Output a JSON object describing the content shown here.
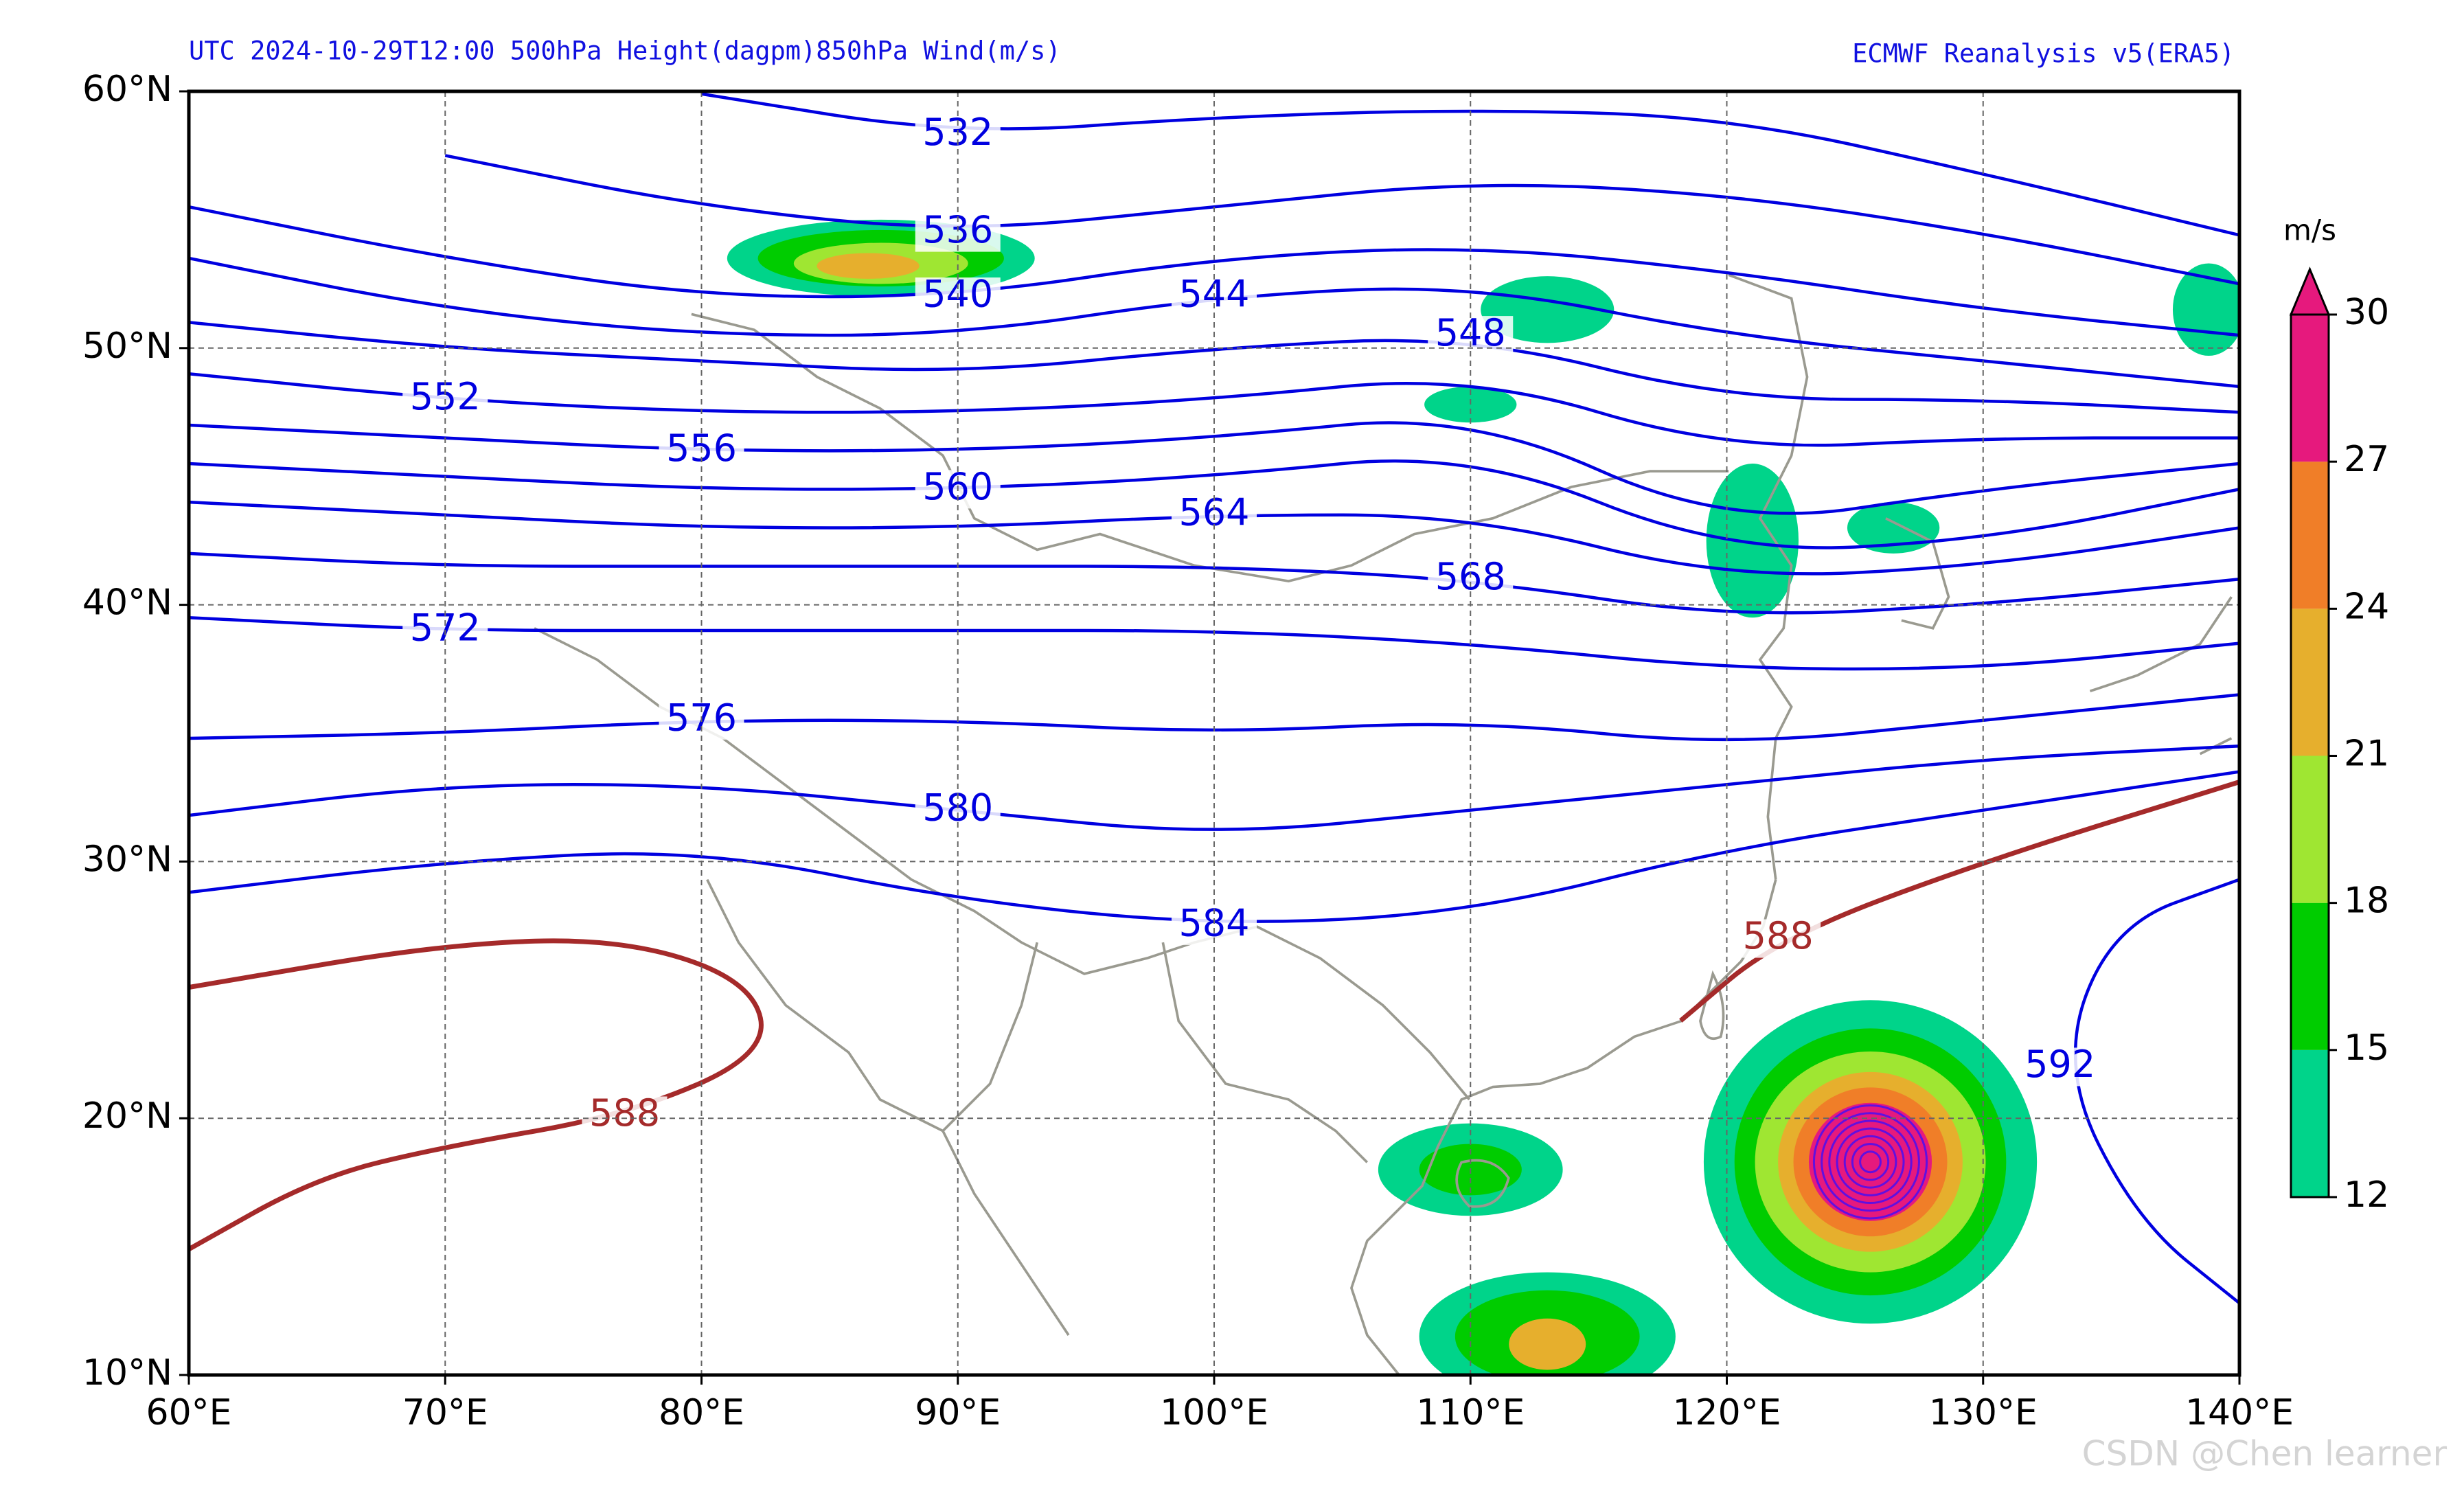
{
  "header": {
    "left": "UTC 2024-10-29T12:00 500hPa Height(dagpm)850hPa Wind(m/s)",
    "right": "ECMWF Reanalysis v5(ERA5)"
  },
  "chart_data": {
    "type": "map",
    "xlim": [
      60,
      140
    ],
    "ylim": [
      10,
      60
    ],
    "xticks": [
      {
        "value": 60,
        "label": "60°E"
      },
      {
        "value": 70,
        "label": "70°E"
      },
      {
        "value": 80,
        "label": "80°E"
      },
      {
        "value": 90,
        "label": "90°E"
      },
      {
        "value": 100,
        "label": "100°E"
      },
      {
        "value": 110,
        "label": "110°E"
      },
      {
        "value": 120,
        "label": "120°E"
      },
      {
        "value": 130,
        "label": "130°E"
      },
      {
        "value": 140,
        "label": "140°E"
      }
    ],
    "yticks": [
      {
        "value": 10,
        "label": "10°N"
      },
      {
        "value": 20,
        "label": "20°N"
      },
      {
        "value": 30,
        "label": "30°N"
      },
      {
        "value": 40,
        "label": "40°N"
      },
      {
        "value": 50,
        "label": "50°N"
      },
      {
        "value": 60,
        "label": "60°N"
      }
    ],
    "grid": true,
    "contours": [
      {
        "level": 532,
        "color": "#0000e0",
        "points": [
          [
            80,
            59.9
          ],
          [
            90,
            58.3
          ],
          [
            100,
            59
          ],
          [
            110,
            59.3
          ],
          [
            120,
            59
          ],
          [
            130,
            56.8
          ],
          [
            140,
            54.4
          ]
        ]
      },
      {
        "level": 536,
        "color": "#0000e0",
        "points": [
          [
            70,
            57.5
          ],
          [
            80,
            55.5
          ],
          [
            90,
            54.5
          ],
          [
            100,
            55.5
          ],
          [
            110,
            56.5
          ],
          [
            120,
            56
          ],
          [
            130,
            54.5
          ],
          [
            140,
            52.5
          ]
        ]
      },
      {
        "level": 540,
        "color": "#0000e0",
        "points": [
          [
            60,
            55.5
          ],
          [
            70,
            53.5
          ],
          [
            80,
            52
          ],
          [
            90,
            52
          ],
          [
            100,
            53.5
          ],
          [
            110,
            54
          ],
          [
            120,
            53
          ],
          [
            130,
            51.5
          ],
          [
            140,
            50.5
          ]
        ]
      },
      {
        "level": 544,
        "color": "#0000e0",
        "points": [
          [
            60,
            53.5
          ],
          [
            70,
            51.5
          ],
          [
            80,
            50.5
          ],
          [
            90,
            50.5
          ],
          [
            100,
            52
          ],
          [
            110,
            52.5
          ],
          [
            120,
            50.5
          ],
          [
            130,
            49.5
          ],
          [
            140,
            48.5
          ]
        ]
      },
      {
        "level": 548,
        "color": "#0000e0",
        "points": [
          [
            60,
            51
          ],
          [
            70,
            50
          ],
          [
            80,
            49.5
          ],
          [
            90,
            49
          ],
          [
            100,
            50
          ],
          [
            110,
            50.5
          ],
          [
            120,
            48
          ],
          [
            130,
            48
          ],
          [
            140,
            47.5
          ]
        ]
      },
      {
        "level": 552,
        "color": "#0000e0",
        "points": [
          [
            60,
            49
          ],
          [
            70,
            48
          ],
          [
            80,
            47.5
          ],
          [
            90,
            47.5
          ],
          [
            100,
            48
          ],
          [
            110,
            49
          ],
          [
            120,
            46
          ],
          [
            130,
            46.5
          ],
          [
            140,
            46.5
          ]
        ]
      },
      {
        "level": 556,
        "color": "#0000e0",
        "points": [
          [
            60,
            47
          ],
          [
            70,
            46.5
          ],
          [
            80,
            46
          ],
          [
            90,
            46
          ],
          [
            100,
            46.5
          ],
          [
            110,
            47.5
          ],
          [
            120,
            43
          ],
          [
            130,
            44.5
          ],
          [
            140,
            45.5
          ]
        ]
      },
      {
        "level": 560,
        "color": "#0000e0",
        "points": [
          [
            60,
            45.5
          ],
          [
            70,
            45
          ],
          [
            80,
            44.5
          ],
          [
            90,
            44.5
          ],
          [
            100,
            45
          ],
          [
            110,
            46
          ],
          [
            120,
            42
          ],
          [
            130,
            42.5
          ],
          [
            140,
            44.5
          ]
        ]
      },
      {
        "level": 564,
        "color": "#0000e0",
        "points": [
          [
            60,
            44
          ],
          [
            70,
            43.5
          ],
          [
            80,
            43
          ],
          [
            90,
            43
          ],
          [
            100,
            43.5
          ],
          [
            110,
            43.5
          ],
          [
            120,
            41
          ],
          [
            130,
            41.5
          ],
          [
            140,
            43
          ]
        ]
      },
      {
        "level": 568,
        "color": "#0000e0",
        "points": [
          [
            60,
            42
          ],
          [
            70,
            41.5
          ],
          [
            80,
            41.5
          ],
          [
            90,
            41.5
          ],
          [
            100,
            41.5
          ],
          [
            110,
            41
          ],
          [
            120,
            39.5
          ],
          [
            130,
            40
          ],
          [
            140,
            41
          ]
        ]
      },
      {
        "level": 572,
        "color": "#0000e0",
        "points": [
          [
            60,
            39.5
          ],
          [
            70,
            39
          ],
          [
            80,
            39
          ],
          [
            90,
            39
          ],
          [
            100,
            39
          ],
          [
            110,
            38.5
          ],
          [
            120,
            37.5
          ],
          [
            130,
            37.5
          ],
          [
            140,
            38.5
          ]
        ]
      },
      {
        "level": 576,
        "color": "#0000e0",
        "points": [
          [
            60,
            34.8
          ],
          [
            70,
            35
          ],
          [
            80,
            35.5
          ],
          [
            90,
            35.5
          ],
          [
            100,
            35
          ],
          [
            110,
            35.5
          ],
          [
            120,
            34.5
          ],
          [
            130,
            35.5
          ],
          [
            140,
            36.5
          ]
        ]
      },
      {
        "level": 580,
        "color": "#0000e0",
        "points": [
          [
            60,
            31.8
          ],
          [
            70,
            33
          ],
          [
            80,
            33
          ],
          [
            90,
            32
          ],
          [
            100,
            31
          ],
          [
            110,
            32
          ],
          [
            120,
            33
          ],
          [
            130,
            34
          ],
          [
            140,
            34.5
          ]
        ]
      },
      {
        "level": 584,
        "color": "#0000e0",
        "points": [
          [
            60,
            28.8
          ],
          [
            70,
            30
          ],
          [
            80,
            30.5
          ],
          [
            90,
            28.5
          ],
          [
            100,
            27.5
          ],
          [
            110,
            28
          ],
          [
            120,
            30.5
          ],
          [
            130,
            32
          ],
          [
            140,
            33.5
          ]
        ]
      },
      {
        "level": 588,
        "color": "#a52a2a",
        "points": [
          [
            60,
            25.1
          ],
          [
            70,
            26.8
          ],
          [
            77,
            27
          ],
          [
            82,
            25.3
          ],
          [
            82.6,
            22.5
          ],
          [
            77,
            20.1
          ],
          [
            70,
            18.9
          ],
          [
            65,
            17.7
          ],
          [
            60,
            14.9
          ]
        ]
      },
      {
        "level": 588,
        "color": "#a52a2a",
        "points": [
          [
            118.2,
            23.8
          ],
          [
            122,
            27
          ],
          [
            130,
            30
          ],
          [
            140,
            33.1
          ]
        ]
      },
      {
        "level": 592,
        "color": "#0000e0",
        "points": [
          [
            140,
            12.8
          ],
          [
            136,
            16
          ],
          [
            133,
            22
          ],
          [
            135,
            27.5
          ],
          [
            140,
            29.3
          ]
        ]
      }
    ],
    "shading": [
      {
        "lon": 125.6,
        "lat": 18.3,
        "rx": 6.5,
        "ry": 6.3,
        "level": 12
      },
      {
        "lon": 125.6,
        "lat": 18.3,
        "rx": 5.3,
        "ry": 5.2,
        "level": 15
      },
      {
        "lon": 125.6,
        "lat": 18.3,
        "rx": 4.5,
        "ry": 4.3,
        "level": 18
      },
      {
        "lon": 125.6,
        "lat": 18.3,
        "rx": 3.6,
        "ry": 3.5,
        "level": 21
      },
      {
        "lon": 125.6,
        "lat": 18.3,
        "rx": 3,
        "ry": 2.9,
        "level": 24
      },
      {
        "lon": 125.6,
        "lat": 18.3,
        "rx": 2.4,
        "ry": 2.3,
        "level": 27
      },
      {
        "lon": 87,
        "lat": 53.5,
        "rx": 6,
        "ry": 1.5,
        "level": 12
      },
      {
        "lon": 87,
        "lat": 53.5,
        "rx": 4.8,
        "ry": 1.1,
        "level": 15
      },
      {
        "lon": 87,
        "lat": 53.3,
        "rx": 3.4,
        "ry": 0.8,
        "level": 18
      },
      {
        "lon": 86.5,
        "lat": 53.2,
        "rx": 2,
        "ry": 0.5,
        "level": 21
      },
      {
        "lon": 110,
        "lat": 18,
        "rx": 3.6,
        "ry": 1.8,
        "level": 12
      },
      {
        "lon": 110,
        "lat": 18,
        "rx": 2,
        "ry": 1,
        "level": 15
      },
      {
        "lon": 113,
        "lat": 11.5,
        "rx": 5,
        "ry": 2.5,
        "level": 12
      },
      {
        "lon": 113,
        "lat": 11.5,
        "rx": 3.6,
        "ry": 1.8,
        "level": 15
      },
      {
        "lon": 113,
        "lat": 11.2,
        "rx": 1.5,
        "ry": 1,
        "level": 21
      },
      {
        "lon": 121,
        "lat": 42.5,
        "rx": 1.8,
        "ry": 3,
        "level": 12
      },
      {
        "lon": 113,
        "lat": 51.5,
        "rx": 2.6,
        "ry": 1.3,
        "level": 12
      },
      {
        "lon": 110,
        "lat": 47.8,
        "rx": 1.8,
        "ry": 0.7,
        "level": 12
      },
      {
        "lon": 138.8,
        "lat": 51.5,
        "rx": 1.4,
        "ry": 1.8,
        "level": 12
      },
      {
        "lon": 126.5,
        "lat": 43,
        "rx": 1.8,
        "ry": 1,
        "level": 12
      }
    ],
    "colorbar": {
      "unit": "m/s",
      "levels": [
        12,
        15,
        18,
        21,
        24,
        27,
        30
      ],
      "colors": [
        "#00d48a",
        "#00cc00",
        "#9fe632",
        "#e6af2d",
        "#f07e28",
        "#e6197d"
      ]
    }
  },
  "watermark": "CSDN @Chen learner"
}
